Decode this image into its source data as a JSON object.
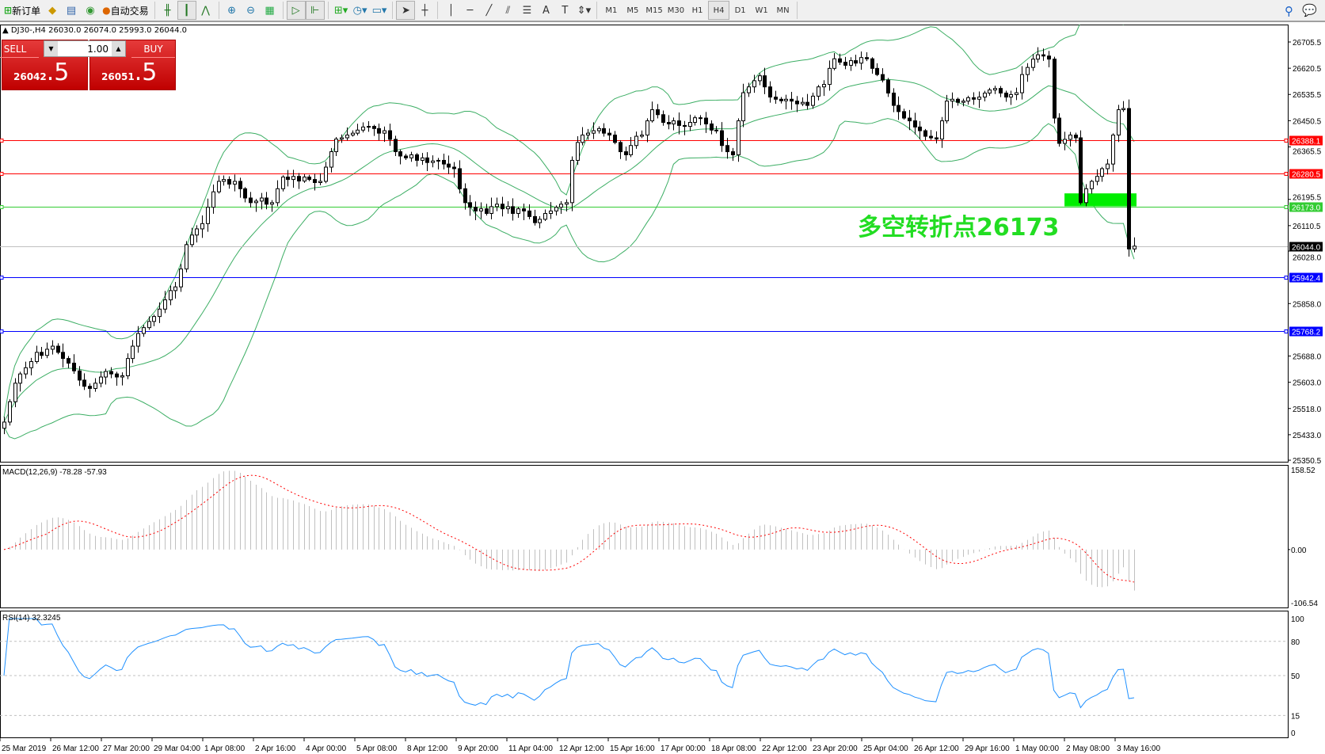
{
  "toolbar": {
    "new_order": "新订单",
    "auto_trading": "自动交易",
    "icons": [
      "new-order-icon",
      "market-watch-icon",
      "navigator-icon",
      "signals-icon",
      "auto-trading-icon",
      "bar-chart-icon",
      "candlestick-icon",
      "line-chart-icon",
      "zoom-in-icon",
      "zoom-out-icon",
      "tile-windows-icon",
      "auto-scroll-icon",
      "chart-shift-icon",
      "indicators-icon",
      "periods-icon",
      "templates-icon",
      "cursor-icon",
      "crosshair-icon",
      "vertical-line-icon",
      "horizontal-line-icon",
      "trendline-icon",
      "equidistant-channel-icon",
      "fibonacci-icon",
      "text-icon",
      "text-label-icon",
      "arrows-icon"
    ],
    "text_tool": "A",
    "label_tool": "T",
    "timeframes": [
      "M1",
      "M5",
      "M15",
      "M30",
      "H1",
      "H4",
      "D1",
      "W1",
      "MN"
    ],
    "active_timeframe": "H4"
  },
  "chart": {
    "header": "DJ30-,H4  26030.0 26074.0 25993.0 26044.0",
    "one_click": {
      "sell_label": "SELL",
      "buy_label": "BUY",
      "lot": "1.00",
      "sell_big": "26042",
      "sell_small": ".5",
      "buy_big": "26051",
      "buy_small": ".5"
    },
    "annotation": "多空转折点26173",
    "annotation_color": "#22dd22"
  },
  "chart_data": {
    "type": "candlestick",
    "symbol": "DJ30-",
    "timeframe": "H4",
    "last": {
      "open": 26030.0,
      "high": 26074.0,
      "low": 25993.0,
      "close": 26044.0
    },
    "ylim": [
      25350.5,
      26740
    ],
    "price_ticks": [
      "26705.5",
      "26620.5",
      "26535.5",
      "26450.5",
      "26365.5",
      "26195.5",
      "26110.5",
      "26028.0",
      "25858.0",
      "25688.0",
      "25603.0",
      "25518.0",
      "25433.0",
      "25350.5"
    ],
    "levels": [
      {
        "price": 26388.1,
        "label": "26388.1",
        "color": "#ff0000"
      },
      {
        "price": 26280.5,
        "label": "26280.5",
        "color": "#ff0000"
      },
      {
        "price": 26173.0,
        "label": "26173.0",
        "color": "#33cc33"
      },
      {
        "price": 26044.0,
        "label": "26044.0",
        "color": "#000000",
        "line": "#c0c0c0"
      },
      {
        "price": 25942.4,
        "label": "25942.4",
        "color": "#0000ff"
      },
      {
        "price": 25768.2,
        "label": "25768.2",
        "color": "#0000ff"
      }
    ],
    "closes": [
      25474,
      25540,
      25600,
      25630,
      25650,
      25670,
      25700,
      25690,
      25710,
      25720,
      25700,
      25680,
      25665,
      25640,
      25610,
      25590,
      25583,
      25600,
      25620,
      25638,
      25630,
      25620,
      25624,
      25680,
      25720,
      25761,
      25780,
      25800,
      25816,
      25840,
      25870,
      25900,
      25912,
      25970,
      26049,
      26080,
      26100,
      26117,
      26170,
      26220,
      26254,
      26260,
      26245,
      26254,
      26230,
      26200,
      26185,
      26190,
      26200,
      26180,
      26185,
      26230,
      26268,
      26260,
      26270,
      26255,
      26268,
      26260,
      26250,
      26254,
      26300,
      26350,
      26391,
      26395,
      26404,
      26410,
      26420,
      26430,
      26432,
      26425,
      26410,
      26418,
      26390,
      26350,
      26336,
      26330,
      26340,
      26322,
      26330,
      26315,
      26320,
      26322,
      26310,
      26300,
      26295,
      26230,
      26185,
      26170,
      26158,
      26165,
      26150,
      26172,
      26180,
      26165,
      26172,
      26150,
      26165,
      26158,
      26140,
      26120,
      26131,
      26150,
      26158,
      26170,
      26180,
      26185,
      26322,
      26380,
      26404,
      26410,
      26418,
      26425,
      26410,
      26404,
      26380,
      26350,
      26340,
      26370,
      26400,
      26404,
      26450,
      26486,
      26470,
      26445,
      26440,
      26450,
      26435,
      26432,
      26445,
      26460,
      26459,
      26440,
      26420,
      26418,
      26370,
      26350,
      26340,
      26450,
      26541,
      26560,
      26580,
      26596,
      26560,
      26527,
      26520,
      26515,
      26520,
      26514,
      26505,
      26510,
      26500,
      26530,
      26560,
      26568,
      26620,
      26651,
      26640,
      26630,
      26645,
      26637,
      26655,
      26651,
      26620,
      26600,
      26582,
      26540,
      26500,
      26480,
      26459,
      26450,
      26430,
      26418,
      26400,
      26395,
      26391,
      26450,
      26514,
      26520,
      26510,
      26514,
      26525,
      26520,
      26527,
      26540,
      26550,
      26555,
      26540,
      26527,
      26535,
      26541,
      26600,
      26623,
      26650,
      26664,
      26660,
      26650,
      26459,
      26377,
      26390,
      26404,
      26395,
      26185,
      26230,
      26254,
      26270,
      26295,
      26310,
      26404,
      26486,
      26490,
      26035,
      26044
    ],
    "time_labels": [
      "25 Mar 2019",
      "26 Mar 12:00",
      "27 Mar 20:00",
      "29 Mar 04:00",
      "1 Apr 08:00",
      "2 Apr 16:00",
      "4 Apr 00:00",
      "5 Apr 08:00",
      "8 Apr 12:00",
      "9 Apr 20:00",
      "11 Apr 04:00",
      "12 Apr 12:00",
      "15 Apr 16:00",
      "17 Apr 00:00",
      "18 Apr 08:00",
      "22 Apr 12:00",
      "23 Apr 20:00",
      "25 Apr 04:00",
      "26 Apr 12:00",
      "29 Apr 16:00",
      "1 May 00:00",
      "2 May 08:00",
      "3 May 16:00"
    ],
    "bands_color": "#3cae64",
    "zone": {
      "from": 26173.0,
      "to": 26215,
      "color": "#00ee00"
    },
    "macd": {
      "label": "MACD(12,26,9) -78.28 -57.93",
      "max": "158.52",
      "zero": "0.00",
      "min": "-106.54",
      "range": [
        -106.54,
        158.52
      ],
      "signal_color": "#ff0000",
      "hist_color": "#c0c0c0"
    },
    "rsi": {
      "label": "RSI(14) 32.3245",
      "ticks": [
        "100",
        "80",
        "50",
        "15",
        "0"
      ],
      "levels": [
        80,
        50,
        15
      ],
      "color": "#1e90ff"
    }
  }
}
